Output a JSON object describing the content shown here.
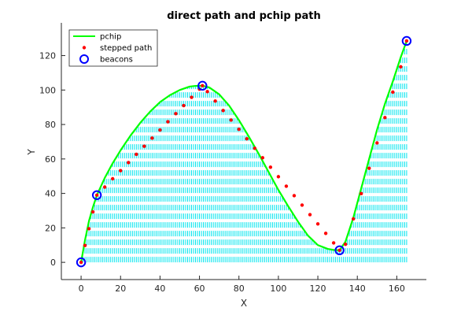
{
  "chart_data": {
    "type": "line",
    "title": "direct path and pchip path",
    "xlabel": "X",
    "ylabel": "Y",
    "xlim": [
      -10,
      175
    ],
    "ylim": [
      -10,
      139
    ],
    "xticks": [
      0,
      20,
      40,
      60,
      80,
      100,
      120,
      140,
      160
    ],
    "yticks": [
      0,
      20,
      40,
      60,
      80,
      100,
      120
    ],
    "grid": false,
    "legend_position": "top-left",
    "colors": {
      "pchip": "#00ff00",
      "stepped": "#ff0000",
      "beacons": "#0000ff",
      "stems": "#00e5ee"
    },
    "beacons": {
      "x": [
        0,
        8,
        61.5,
        131,
        165
      ],
      "y": [
        0,
        39,
        102.5,
        7,
        128.5
      ]
    },
    "series": [
      {
        "name": "pchip",
        "style": "line",
        "x": [
          0,
          2,
          4,
          6,
          8,
          12,
          16,
          20,
          25,
          30,
          35,
          40,
          45,
          50,
          55,
          58,
          61.5,
          65,
          70,
          75,
          80,
          85,
          90,
          95,
          100,
          105,
          110,
          115,
          120,
          125,
          128,
          131,
          134,
          138,
          142,
          146,
          150,
          154,
          158,
          162,
          165
        ],
        "y": [
          0,
          13,
          24,
          32,
          39,
          49,
          57.5,
          65,
          73.5,
          81,
          87.5,
          93,
          97,
          100,
          102,
          102.4,
          102.5,
          101.5,
          97.5,
          91,
          82.5,
          73,
          63,
          52.5,
          42,
          32.5,
          23.5,
          15.5,
          10,
          7.8,
          7.2,
          7,
          12,
          26,
          43,
          60,
          77,
          92,
          105,
          119,
          128.5
        ]
      },
      {
        "name": "stepped path",
        "style": "dots",
        "x": [
          0,
          2,
          4,
          6,
          8,
          12,
          16,
          20,
          24,
          28,
          32,
          36,
          40,
          44,
          48,
          52,
          56,
          60,
          61.5,
          64,
          68,
          72,
          76,
          80,
          84,
          88,
          92,
          96,
          100,
          104,
          108,
          112,
          116,
          120,
          124,
          128,
          131,
          134,
          138,
          142,
          146,
          150,
          154,
          158,
          162,
          165
        ],
        "y": [
          0,
          9.8,
          19.5,
          29.3,
          39,
          43.7,
          48.5,
          53.2,
          57.9,
          62.7,
          67.4,
          72.1,
          76.8,
          81.6,
          86.3,
          91,
          95.8,
          100.5,
          102.5,
          99.1,
          93.6,
          88.1,
          82.6,
          77.2,
          71.7,
          66.2,
          60.7,
          55.2,
          49.7,
          44.2,
          38.7,
          33.2,
          27.7,
          22.3,
          16.8,
          11.3,
          7,
          10.5,
          25.2,
          39.9,
          54.6,
          69.3,
          84,
          98.8,
          113.5,
          128.5
        ]
      }
    ]
  }
}
